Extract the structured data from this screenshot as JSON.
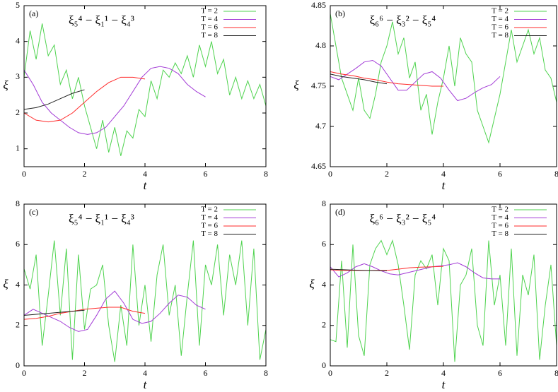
{
  "chart_data": [
    {
      "type": "line",
      "panel": "(a)",
      "title": "ξ₅⁴ − ξ₁¹ − ξ₄³",
      "xlabel": "t",
      "ylabel": "ξ",
      "xlim": [
        0,
        8
      ],
      "xticks": [
        0,
        2,
        4,
        6,
        8
      ],
      "ylim": [
        0.5,
        5
      ],
      "yticks": [
        1,
        2,
        3,
        4,
        5
      ],
      "legend": "upper right",
      "series": [
        {
          "name": "T = 2",
          "color": "#4fd34f",
          "x": [
            0,
            0.2,
            0.4,
            0.6,
            0.8,
            1,
            1.2,
            1.4,
            1.6,
            1.8,
            2,
            2.2,
            2.4,
            2.6,
            2.8,
            3,
            3.2,
            3.4,
            3.6,
            3.8,
            4,
            4.2,
            4.4,
            4.6,
            4.8,
            5,
            5.2,
            5.4,
            5.6,
            5.8,
            6,
            6.2,
            6.4,
            6.6,
            6.8,
            7,
            7.2,
            7.4,
            7.6,
            7.8,
            8
          ],
          "values": [
            3.0,
            4.3,
            3.5,
            4.5,
            3.6,
            3.9,
            2.8,
            3.2,
            2.4,
            3.0,
            2.2,
            1.6,
            1.0,
            1.8,
            0.9,
            1.6,
            0.8,
            1.5,
            1.3,
            2.1,
            1.9,
            2.9,
            2.4,
            3.2,
            3.0,
            3.4,
            3.1,
            3.6,
            3.0,
            3.9,
            3.3,
            4.0,
            3.1,
            3.5,
            2.5,
            3.0,
            2.4,
            2.9,
            2.4,
            2.8,
            2.2
          ]
        },
        {
          "name": "T = 4",
          "color": "#a23ad6",
          "x": [
            0,
            0.3,
            0.6,
            0.9,
            1.2,
            1.5,
            1.8,
            2.1,
            2.4,
            2.7,
            3,
            3.3,
            3.6,
            3.9,
            4.2,
            4.5,
            4.8,
            5.1,
            5.4,
            5.7,
            6
          ],
          "values": [
            3.2,
            2.8,
            2.3,
            2.0,
            1.8,
            1.6,
            1.45,
            1.4,
            1.45,
            1.6,
            1.9,
            2.2,
            2.6,
            3.0,
            3.25,
            3.3,
            3.25,
            3.1,
            2.8,
            2.6,
            2.45
          ]
        },
        {
          "name": "T = 6",
          "color": "#ff2a2a",
          "x": [
            0,
            0.4,
            0.8,
            1.2,
            1.6,
            2,
            2.4,
            2.8,
            3.2,
            3.6,
            4
          ],
          "values": [
            2.0,
            1.8,
            1.75,
            1.8,
            2.0,
            2.3,
            2.6,
            2.85,
            3.0,
            3.0,
            2.95
          ]
        },
        {
          "name": "T = 8",
          "color": "#222222",
          "x": [
            0,
            0.4,
            0.8,
            1.2,
            1.6,
            2
          ],
          "values": [
            2.1,
            2.15,
            2.25,
            2.4,
            2.55,
            2.65
          ]
        }
      ]
    },
    {
      "type": "line",
      "panel": "(b)",
      "title": "ξ₆⁶ − ξ₃² − ξ₅⁴",
      "xlabel": "t",
      "ylabel": "ξ",
      "xlim": [
        0,
        8
      ],
      "xticks": [
        0,
        2,
        4,
        6,
        8
      ],
      "ylim": [
        4.65,
        4.85
      ],
      "yticks": [
        4.65,
        4.7,
        4.75,
        4.8,
        4.85
      ],
      "legend": "upper right",
      "series": [
        {
          "name": "T = 2",
          "color": "#4fd34f",
          "x": [
            0,
            0.2,
            0.4,
            0.6,
            0.8,
            1,
            1.2,
            1.4,
            1.6,
            1.8,
            2,
            2.2,
            2.4,
            2.6,
            2.8,
            3,
            3.2,
            3.4,
            3.6,
            3.8,
            4,
            4.2,
            4.4,
            4.6,
            4.8,
            5,
            5.2,
            5.4,
            5.6,
            5.8,
            6,
            6.2,
            6.4,
            6.6,
            6.8,
            7,
            7.2,
            7.4,
            7.6,
            7.8,
            8
          ],
          "values": [
            4.84,
            4.8,
            4.76,
            4.74,
            4.72,
            4.76,
            4.72,
            4.71,
            4.74,
            4.78,
            4.8,
            4.83,
            4.79,
            4.81,
            4.76,
            4.78,
            4.72,
            4.74,
            4.69,
            4.73,
            4.76,
            4.8,
            4.75,
            4.81,
            4.79,
            4.78,
            4.72,
            4.7,
            4.68,
            4.71,
            4.74,
            4.78,
            4.82,
            4.78,
            4.8,
            4.82,
            4.79,
            4.81,
            4.77,
            4.76,
            4.73
          ]
        },
        {
          "name": "T = 4",
          "color": "#a23ad6",
          "x": [
            0,
            0.3,
            0.6,
            0.9,
            1.2,
            1.5,
            1.8,
            2.1,
            2.4,
            2.7,
            3,
            3.3,
            3.6,
            3.9,
            4.2,
            4.5,
            4.8,
            5.1,
            5.4,
            5.7,
            6
          ],
          "values": [
            4.762,
            4.758,
            4.765,
            4.772,
            4.78,
            4.782,
            4.775,
            4.76,
            4.745,
            4.745,
            4.755,
            4.765,
            4.768,
            4.76,
            4.745,
            4.732,
            4.735,
            4.742,
            4.748,
            4.752,
            4.762
          ]
        },
        {
          "name": "T = 6",
          "color": "#ff2a2a",
          "x": [
            0,
            0.4,
            0.8,
            1.2,
            1.6,
            2,
            2.4,
            2.8,
            3.2,
            3.6,
            4
          ],
          "values": [
            4.768,
            4.765,
            4.763,
            4.76,
            4.758,
            4.755,
            4.753,
            4.752,
            4.751,
            4.75,
            4.75
          ]
        },
        {
          "name": "T = 8",
          "color": "#222222",
          "x": [
            0,
            0.4,
            0.8,
            1.2,
            1.6,
            2
          ],
          "values": [
            4.765,
            4.762,
            4.76,
            4.758,
            4.755,
            4.753
          ]
        }
      ]
    },
    {
      "type": "line",
      "panel": "(c)",
      "title": "ξ₅⁴ − ξ₁¹ − ξ₄³",
      "xlabel": "t",
      "ylabel": "ξ",
      "xlim": [
        0,
        8
      ],
      "xticks": [
        0,
        2,
        4,
        6,
        8
      ],
      "ylim": [
        0,
        8
      ],
      "yticks": [
        0,
        2,
        4,
        6,
        8
      ],
      "legend": "upper right",
      "series": [
        {
          "name": "T = 2",
          "color": "#4fd34f",
          "x": [
            0,
            0.2,
            0.4,
            0.6,
            0.8,
            1,
            1.2,
            1.4,
            1.6,
            1.8,
            2,
            2.2,
            2.4,
            2.6,
            2.8,
            3,
            3.2,
            3.4,
            3.6,
            3.8,
            4,
            4.2,
            4.4,
            4.6,
            4.8,
            5,
            5.2,
            5.4,
            5.6,
            5.8,
            6,
            6.2,
            6.4,
            6.6,
            6.8,
            7,
            7.2,
            7.4,
            7.6,
            7.8,
            8
          ],
          "values": [
            4.8,
            3.8,
            5.5,
            1.0,
            3.5,
            6.2,
            2.5,
            5.8,
            0.3,
            5.5,
            1.8,
            3.8,
            4.0,
            5.0,
            2.0,
            0.2,
            3.0,
            1.0,
            6.0,
            2.0,
            4.0,
            1.2,
            4.5,
            6.0,
            2.5,
            4.0,
            0.5,
            3.5,
            6.2,
            1.0,
            5.0,
            4.0,
            6.0,
            2.5,
            5.5,
            4.0,
            6.2,
            2.0,
            5.8,
            0.3,
            1.8
          ]
        },
        {
          "name": "T = 4",
          "color": "#a23ad6",
          "x": [
            0,
            0.3,
            0.6,
            0.9,
            1.2,
            1.5,
            1.8,
            2.1,
            2.4,
            2.7,
            3,
            3.3,
            3.6,
            3.9,
            4.2,
            4.5,
            4.8,
            5.1,
            5.4,
            5.7,
            6
          ],
          "values": [
            2.5,
            2.8,
            2.6,
            2.4,
            2.2,
            1.9,
            1.7,
            1.8,
            2.5,
            3.3,
            3.7,
            3.1,
            2.3,
            2.1,
            2.2,
            2.6,
            3.1,
            3.5,
            3.4,
            3.0,
            2.8
          ]
        },
        {
          "name": "T = 6",
          "color": "#ff2a2a",
          "x": [
            0,
            0.4,
            0.8,
            1.2,
            1.6,
            2,
            2.4,
            2.8,
            3.2,
            3.6,
            4
          ],
          "values": [
            2.3,
            2.35,
            2.45,
            2.6,
            2.7,
            2.8,
            2.85,
            2.9,
            2.9,
            2.7,
            2.6
          ]
        },
        {
          "name": "T = 8",
          "color": "#222222",
          "x": [
            0,
            0.4,
            0.8,
            1.2,
            1.6,
            2
          ],
          "values": [
            2.5,
            2.55,
            2.6,
            2.65,
            2.7,
            2.75
          ]
        }
      ]
    },
    {
      "type": "line",
      "panel": "(d)",
      "title": "ξ₆⁶ − ξ₃² − ξ₅⁴",
      "xlabel": "t",
      "ylabel": "ξ",
      "xlim": [
        0,
        8
      ],
      "xticks": [
        0,
        2,
        4,
        6,
        8
      ],
      "ylim": [
        0,
        8
      ],
      "yticks": [
        0,
        2,
        4,
        6,
        8
      ],
      "legend": "upper right",
      "series": [
        {
          "name": "T = 2",
          "color": "#4fd34f",
          "x": [
            0,
            0.2,
            0.4,
            0.6,
            0.8,
            1,
            1.2,
            1.4,
            1.6,
            1.8,
            2,
            2.2,
            2.4,
            2.6,
            2.8,
            3,
            3.2,
            3.4,
            3.6,
            3.8,
            4,
            4.2,
            4.4,
            4.6,
            4.8,
            5,
            5.2,
            5.4,
            5.6,
            5.8,
            6,
            6.2,
            6.4,
            6.6,
            6.8,
            7,
            7.2,
            7.4,
            7.6,
            7.8,
            8
          ],
          "values": [
            1.3,
            1.2,
            5.2,
            0.9,
            6.0,
            1.5,
            0.5,
            5.0,
            5.8,
            6.2,
            5.5,
            6.2,
            5.0,
            3.0,
            0.8,
            4.5,
            5.2,
            4.8,
            5.5,
            3.0,
            5.8,
            5.2,
            0.2,
            4.0,
            4.5,
            5.8,
            2.0,
            1.0,
            6.2,
            3.0,
            4.5,
            1.0,
            5.8,
            0.5,
            4.5,
            3.5,
            5.5,
            0.3,
            3.0,
            5.0,
            1.0
          ]
        },
        {
          "name": "T = 4",
          "color": "#a23ad6",
          "x": [
            0,
            0.3,
            0.6,
            0.9,
            1.2,
            1.5,
            1.8,
            2.1,
            2.4,
            2.7,
            3,
            3.3,
            3.6,
            3.9,
            4.2,
            4.5,
            4.8,
            5.1,
            5.4,
            5.7,
            6
          ],
          "values": [
            4.9,
            4.4,
            4.6,
            4.9,
            5.05,
            4.9,
            4.7,
            4.55,
            4.5,
            4.6,
            4.7,
            4.8,
            4.9,
            4.95,
            5.0,
            5.1,
            4.9,
            4.6,
            4.35,
            4.3,
            4.3
          ]
        },
        {
          "name": "T = 6",
          "color": "#ff2a2a",
          "x": [
            0,
            0.4,
            0.8,
            1.2,
            1.6,
            2,
            2.4,
            2.8,
            3.2,
            3.6,
            4
          ],
          "values": [
            4.75,
            4.72,
            4.72,
            4.72,
            4.72,
            4.72,
            4.78,
            4.85,
            4.88,
            4.9,
            4.92
          ]
        },
        {
          "name": "T = 8",
          "color": "#222222",
          "x": [
            0,
            0.4,
            0.8,
            1.2,
            1.6,
            2
          ],
          "values": [
            4.78,
            4.76,
            4.74,
            4.72,
            4.71,
            4.7
          ]
        }
      ]
    }
  ]
}
